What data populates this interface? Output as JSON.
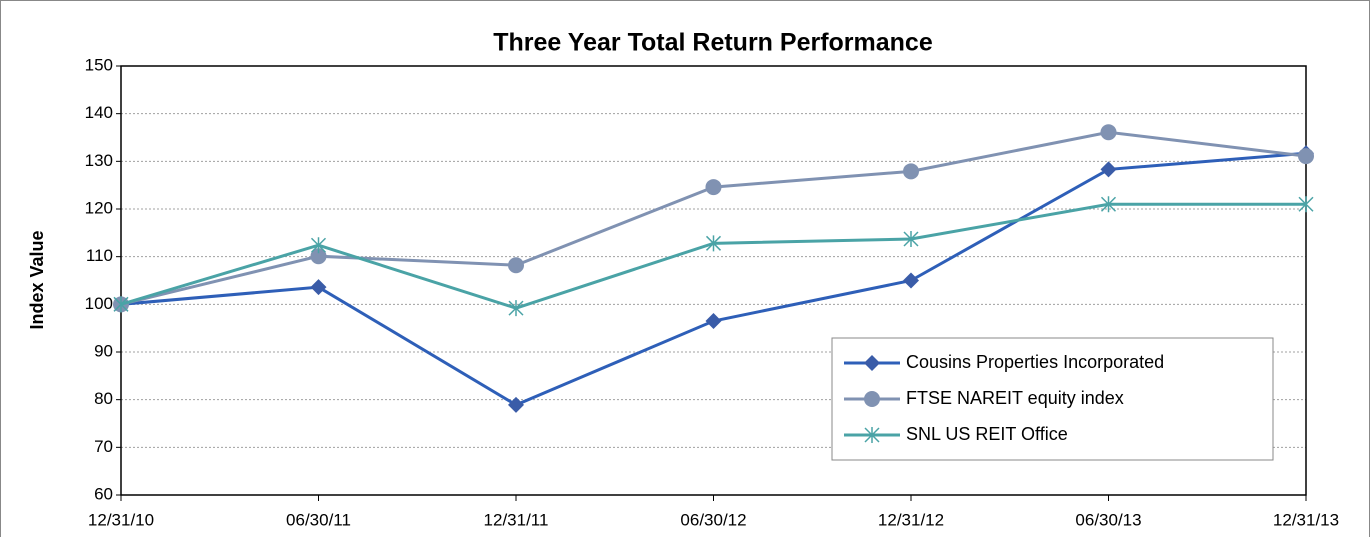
{
  "chart_data": {
    "type": "line",
    "title": "Three Year Total Return Performance",
    "y_label": "Index Value",
    "categories": [
      "12/31/10",
      "06/30/11",
      "12/31/11",
      "06/30/12",
      "12/31/12",
      "06/30/13",
      "12/31/13"
    ],
    "series": [
      {
        "name": "Cousins Properties Incorporated",
        "color": "#2e5fb8",
        "marker": "diamond",
        "values": [
          100,
          103.6,
          78.9,
          96.5,
          105,
          128.3,
          131.7
        ]
      },
      {
        "name": "FTSE NAREIT equity index",
        "color": "#8092b2",
        "marker": "circle",
        "values": [
          100,
          110.1,
          108.2,
          124.6,
          127.9,
          136.1,
          131.1
        ]
      },
      {
        "name": "SNL US REIT Office",
        "color": "#4aa3a6",
        "marker": "asterisk",
        "values": [
          100,
          112.4,
          99.2,
          112.8,
          113.7,
          121,
          121
        ]
      }
    ],
    "ylim": [
      60,
      150
    ],
    "yticks": [
      60,
      70,
      80,
      90,
      100,
      110,
      120,
      130,
      140,
      150
    ],
    "grid": true,
    "legend": "lower-right"
  }
}
